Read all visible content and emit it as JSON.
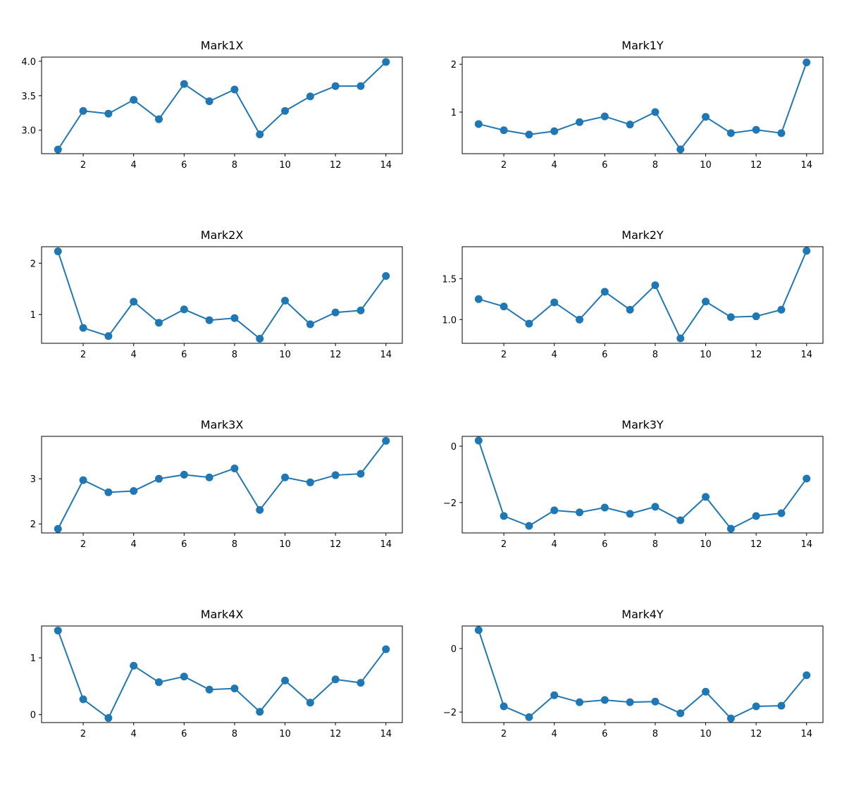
{
  "chart_data": [
    {
      "type": "line",
      "title": "Mark1X",
      "x": [
        1,
        2,
        3,
        4,
        5,
        6,
        7,
        8,
        9,
        10,
        11,
        12,
        13,
        14
      ],
      "color": "#1f77b4",
      "values": [
        2.72,
        3.28,
        3.24,
        3.44,
        3.16,
        3.67,
        3.42,
        3.59,
        2.94,
        3.28,
        3.49,
        3.64,
        3.64,
        3.99
      ],
      "xlim": [
        0.35,
        14.65
      ],
      "xticks": [
        2,
        4,
        6,
        8,
        10,
        12,
        14
      ],
      "ylim": [
        2.66,
        4.06
      ],
      "yticks": [
        {
          "value": 3,
          "label": "3.0"
        },
        3.5,
        {
          "value": 4,
          "label": "4.0"
        }
      ]
    },
    {
      "type": "line",
      "title": "Mark1Y",
      "x": [
        1,
        2,
        3,
        4,
        5,
        6,
        7,
        8,
        9,
        10,
        11,
        12,
        13,
        14
      ],
      "color": "#1f77b4",
      "values": [
        0.75,
        0.62,
        0.53,
        0.6,
        0.79,
        0.91,
        0.74,
        1.0,
        0.22,
        0.9,
        0.56,
        0.63,
        0.56,
        2.04
      ],
      "xlim": [
        0.35,
        14.65
      ],
      "xticks": [
        2,
        4,
        6,
        8,
        10,
        12,
        14
      ],
      "ylim": [
        0.13,
        2.15
      ],
      "yticks": [
        1,
        2
      ]
    },
    {
      "type": "line",
      "title": "Mark2X",
      "x": [
        1,
        2,
        3,
        4,
        5,
        6,
        7,
        8,
        9,
        10,
        11,
        12,
        13,
        14
      ],
      "color": "#1f77b4",
      "values": [
        2.23,
        0.74,
        0.58,
        1.25,
        0.84,
        1.1,
        0.89,
        0.93,
        0.53,
        1.27,
        0.81,
        1.04,
        1.08,
        1.75
      ],
      "xlim": [
        0.35,
        14.65
      ],
      "xticks": [
        2,
        4,
        6,
        8,
        10,
        12,
        14
      ],
      "ylim": [
        0.44,
        2.32
      ],
      "yticks": [
        1,
        2
      ]
    },
    {
      "type": "line",
      "title": "Mark2Y",
      "x": [
        1,
        2,
        3,
        4,
        5,
        6,
        7,
        8,
        9,
        10,
        11,
        12,
        13,
        14
      ],
      "color": "#1f77b4",
      "values": [
        1.25,
        1.16,
        0.95,
        1.21,
        1.0,
        1.34,
        1.12,
        1.42,
        0.77,
        1.22,
        1.03,
        1.04,
        1.12,
        1.84
      ],
      "xlim": [
        0.35,
        14.65
      ],
      "xticks": [
        2,
        4,
        6,
        8,
        10,
        12,
        14
      ],
      "ylim": [
        0.71,
        1.89
      ],
      "yticks": [
        {
          "value": 1,
          "label": "1.0"
        },
        1.5
      ]
    },
    {
      "type": "line",
      "title": "Mark3X",
      "x": [
        1,
        2,
        3,
        4,
        5,
        6,
        7,
        8,
        9,
        10,
        11,
        12,
        13,
        14
      ],
      "color": "#1f77b4",
      "values": [
        1.89,
        2.97,
        2.7,
        2.73,
        3.0,
        3.09,
        3.03,
        3.23,
        2.31,
        3.03,
        2.92,
        3.08,
        3.11,
        3.84
      ],
      "xlim": [
        0.35,
        14.65
      ],
      "xticks": [
        2,
        4,
        6,
        8,
        10,
        12,
        14
      ],
      "ylim": [
        1.8,
        3.94
      ],
      "yticks": [
        2,
        3
      ]
    },
    {
      "type": "line",
      "title": "Mark3Y",
      "x": [
        1,
        2,
        3,
        4,
        5,
        6,
        7,
        8,
        9,
        10,
        11,
        12,
        13,
        14
      ],
      "color": "#1f77b4",
      "values": [
        0.2,
        -2.48,
        -2.83,
        -2.28,
        -2.35,
        -2.18,
        -2.4,
        -2.15,
        -2.63,
        -1.8,
        -2.93,
        -2.48,
        -2.38,
        -1.15
      ],
      "xlim": [
        0.35,
        14.65
      ],
      "xticks": [
        2,
        4,
        6,
        8,
        10,
        12,
        14
      ],
      "ylim": [
        -3.08,
        0.35
      ],
      "yticks": [
        {
          "value": -2,
          "label": "−2"
        },
        0
      ]
    },
    {
      "type": "line",
      "title": "Mark4X",
      "x": [
        1,
        2,
        3,
        4,
        5,
        6,
        7,
        8,
        9,
        10,
        11,
        12,
        13,
        14
      ],
      "color": "#1f77b4",
      "values": [
        1.48,
        0.27,
        -0.06,
        0.86,
        0.57,
        0.67,
        0.44,
        0.46,
        0.05,
        0.6,
        0.21,
        0.62,
        0.56,
        1.15
      ],
      "xlim": [
        0.35,
        14.65
      ],
      "xticks": [
        2,
        4,
        6,
        8,
        10,
        12,
        14
      ],
      "ylim": [
        -0.14,
        1.56
      ],
      "yticks": [
        0,
        1
      ]
    },
    {
      "type": "line",
      "title": "Mark4Y",
      "x": [
        1,
        2,
        3,
        4,
        5,
        6,
        7,
        8,
        9,
        10,
        11,
        12,
        13,
        14
      ],
      "color": "#1f77b4",
      "values": [
        0.58,
        -1.82,
        -2.16,
        -1.47,
        -1.69,
        -1.62,
        -1.69,
        -1.67,
        -2.04,
        -1.36,
        -2.2,
        -1.82,
        -1.8,
        -0.84
      ],
      "xlim": [
        0.35,
        14.65
      ],
      "xticks": [
        2,
        4,
        6,
        8,
        10,
        12,
        14
      ],
      "ylim": [
        -2.33,
        0.71
      ],
      "yticks": [
        {
          "value": -2,
          "label": "−2"
        },
        0
      ]
    }
  ]
}
